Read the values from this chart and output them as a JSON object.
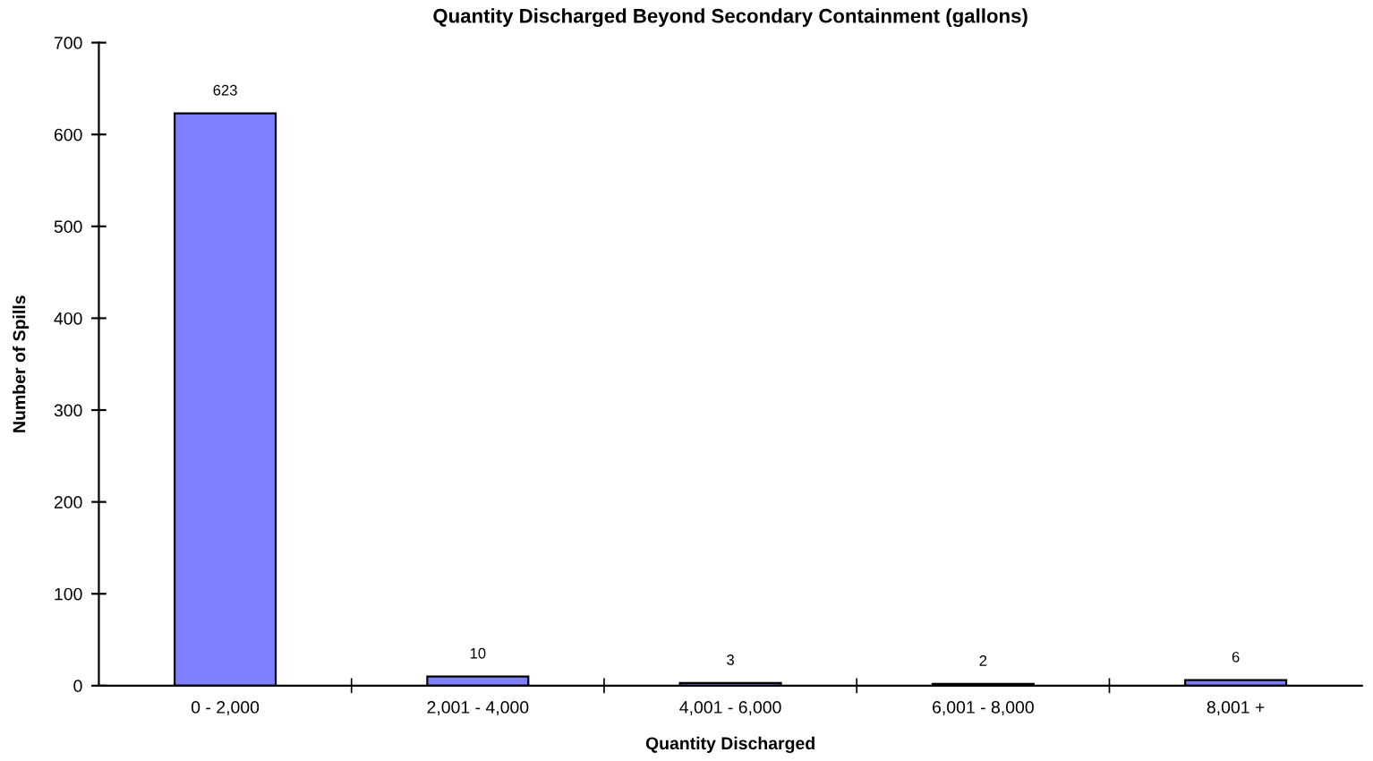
{
  "chart_data": {
    "type": "bar",
    "title": "Quantity Discharged Beyond Secondary Containment (gallons)",
    "xlabel": "Quantity Discharged",
    "ylabel": "Number of Spills",
    "categories": [
      "0 - 2,000",
      "2,001 - 4,000",
      "4,001 - 6,000",
      "6,001 - 8,000",
      "8,001 +"
    ],
    "values": [
      623,
      10,
      3,
      2,
      6
    ],
    "color": "#8080ff",
    "ylim": [
      0,
      700
    ],
    "yticks": [
      0,
      100,
      200,
      300,
      400,
      500,
      600,
      700
    ],
    "grid": false,
    "data_labels": true
  }
}
